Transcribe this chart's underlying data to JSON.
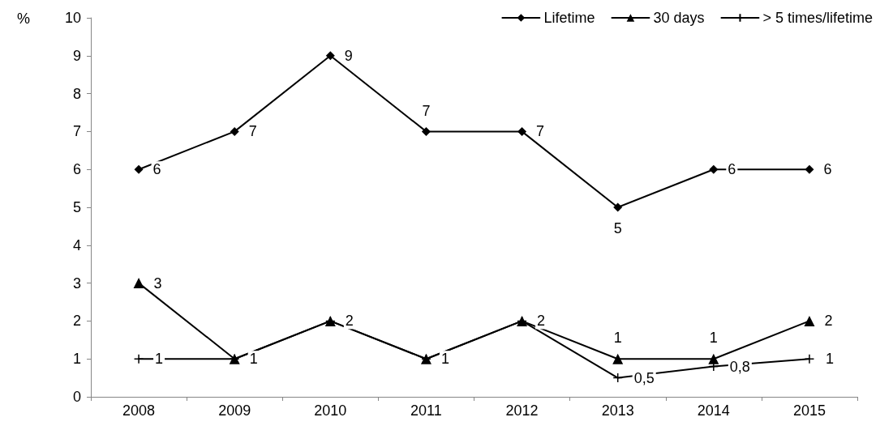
{
  "chart_data": {
    "type": "line",
    "ylabel": "%",
    "categories": [
      "2008",
      "2009",
      "2010",
      "2011",
      "2012",
      "2013",
      "2014",
      "2015"
    ],
    "ylim": [
      0,
      10
    ],
    "yticks": [
      0,
      1,
      2,
      3,
      4,
      5,
      6,
      7,
      8,
      9,
      10
    ],
    "grid": false,
    "legend": "top right",
    "line_style": "solid",
    "series": [
      {
        "name": "Lifetime",
        "color": "#000000",
        "marker": "diamond",
        "values": [
          6,
          7,
          9,
          7,
          7,
          5,
          6,
          6
        ],
        "value_labels": [
          "6",
          "7",
          "9",
          "7",
          "7",
          "5",
          "6",
          "6"
        ]
      },
      {
        "name": "30 days",
        "color": "#000000",
        "marker": "triangle",
        "values": [
          3,
          1,
          2,
          1,
          2,
          1,
          1,
          2
        ],
        "value_labels": [
          "3",
          "1",
          "2",
          "1",
          "2",
          "1",
          "1",
          "2"
        ]
      },
      {
        "name": "> 5 times/lifetime",
        "color": "#000000",
        "marker": "cross",
        "values": [
          1,
          1,
          2,
          1,
          2,
          0.5,
          0.8,
          1
        ],
        "value_labels": [
          "1",
          null,
          null,
          null,
          null,
          "0,5",
          "0,8",
          "1"
        ]
      }
    ]
  }
}
